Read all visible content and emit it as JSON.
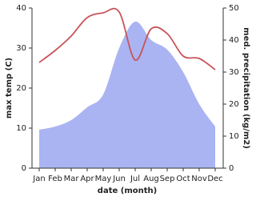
{
  "chart_data": {
    "type": "line-area",
    "x_label": "date (month)",
    "y_label": "max temp (C)",
    "y2_label": "med. precipitation (kg/m2)",
    "categories": [
      "Jan",
      "Feb",
      "Mar",
      "Apr",
      "May",
      "Jun",
      "Jul",
      "Aug",
      "Sep",
      "Oct",
      "Nov",
      "Dec"
    ],
    "series": [
      {
        "name": "max temp",
        "color": "#c8545a",
        "values": [
          26.4,
          29.4,
          33,
          37.6,
          38.8,
          39,
          27,
          34.8,
          33.6,
          28,
          27.4,
          24.6
        ]
      },
      {
        "name": "med. precipitation",
        "color": "#aab4f2",
        "axis": "y2",
        "values": [
          12,
          13,
          15,
          19,
          23,
          37.5,
          45.75,
          40,
          37,
          30,
          20,
          13
        ]
      }
    ],
    "ylim": [
      0,
      40
    ],
    "yticks": [
      0,
      10,
      20,
      30,
      40
    ],
    "y2lim": [
      0,
      50
    ],
    "y2ticks": [
      0,
      10,
      20,
      30,
      40,
      50
    ]
  }
}
